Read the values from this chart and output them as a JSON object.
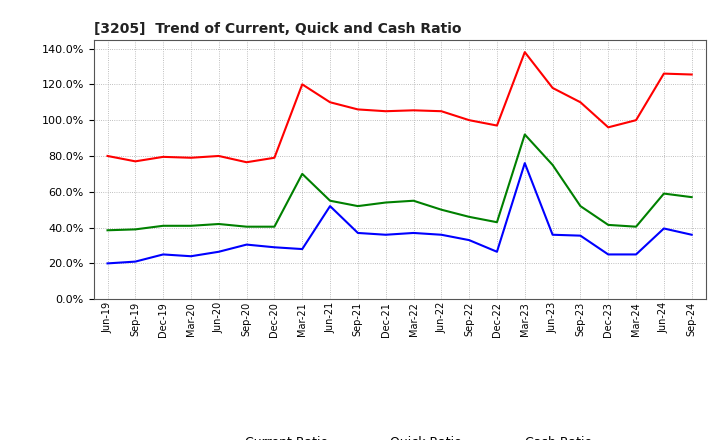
{
  "title": "[3205]  Trend of Current, Quick and Cash Ratio",
  "x_labels": [
    "Jun-19",
    "Sep-19",
    "Dec-19",
    "Mar-20",
    "Jun-20",
    "Sep-20",
    "Dec-20",
    "Mar-21",
    "Jun-21",
    "Sep-21",
    "Dec-21",
    "Mar-22",
    "Jun-22",
    "Sep-22",
    "Dec-22",
    "Mar-23",
    "Jun-23",
    "Sep-23",
    "Dec-23",
    "Mar-24",
    "Jun-24",
    "Sep-24"
  ],
  "current_ratio": [
    80.0,
    77.0,
    79.5,
    79.0,
    80.0,
    76.5,
    79.0,
    120.0,
    110.0,
    106.0,
    105.0,
    105.5,
    105.0,
    100.0,
    97.0,
    138.0,
    118.0,
    110.0,
    96.0,
    100.0,
    126.0,
    125.5
  ],
  "quick_ratio": [
    38.5,
    39.0,
    41.0,
    41.0,
    42.0,
    40.5,
    40.5,
    70.0,
    55.0,
    52.0,
    54.0,
    55.0,
    50.0,
    46.0,
    43.0,
    92.0,
    75.0,
    52.0,
    41.5,
    40.5,
    59.0,
    57.0
  ],
  "cash_ratio": [
    20.0,
    21.0,
    25.0,
    24.0,
    26.5,
    30.5,
    29.0,
    28.0,
    52.0,
    37.0,
    36.0,
    37.0,
    36.0,
    33.0,
    26.5,
    76.0,
    36.0,
    35.5,
    25.0,
    25.0,
    39.5,
    36.0
  ],
  "current_color": "#FF0000",
  "quick_color": "#008000",
  "cash_color": "#0000FF",
  "bg_color": "#FFFFFF",
  "grid_color": "#AAAAAA",
  "ylim": [
    0,
    145
  ],
  "yticks": [
    0,
    20,
    40,
    60,
    80,
    100,
    120,
    140
  ],
  "legend_labels": [
    "Current Ratio",
    "Quick Ratio",
    "Cash Ratio"
  ]
}
